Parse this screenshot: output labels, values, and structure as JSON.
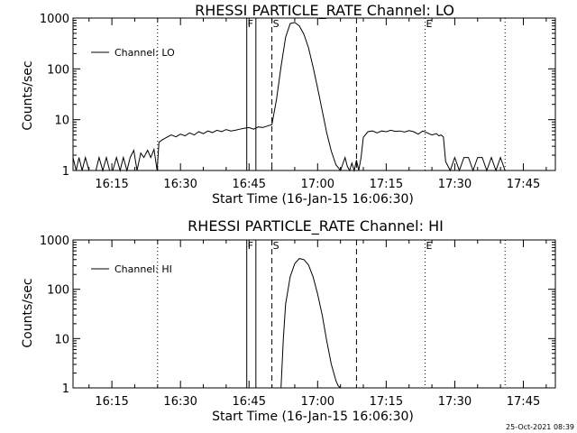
{
  "chart_data": [
    {
      "type": "line",
      "title": "RHESSI PARTICLE_RATE Channel: LO",
      "xlabel": "Start Time (16-Jan-15 16:06:30)",
      "ylabel": "Counts/sec",
      "y_scale": "log",
      "ylim": [
        1,
        1000
      ],
      "y_tick_values": [
        1,
        10,
        100,
        1000
      ],
      "y_tick_labels": [
        "1",
        "10",
        "100",
        "1000"
      ],
      "xlim_minutes": [
        6.5,
        112
      ],
      "x_tick_values": [
        15,
        30,
        45,
        60,
        75,
        90,
        105
      ],
      "x_tick_labels": [
        "16:15",
        "16:30",
        "16:45",
        "17:00",
        "17:15",
        "17:30",
        "17:45"
      ],
      "legend_label": "Channel: LO",
      "legend_position": "top-left",
      "markers": [
        {
          "label": "F",
          "x": 44.5,
          "style": "solid"
        },
        {
          "label": "",
          "x": 46.5,
          "style": "solid"
        },
        {
          "label": "S",
          "x": 50.0,
          "style": "dashed"
        },
        {
          "label": "",
          "x": 68.5,
          "style": "dashed"
        },
        {
          "label": "E",
          "x": 83.5,
          "style": "dotted"
        },
        {
          "label": "",
          "x": 25.0,
          "style": "dotted"
        },
        {
          "label": "",
          "x": 101.0,
          "style": "dotted"
        }
      ],
      "series": [
        {
          "x": [
            6.5,
            7.2,
            7.8,
            8.5,
            9.2,
            10.0,
            10.7,
            11.5,
            12.2,
            13.0,
            13.8,
            14.5,
            15.2,
            16.0,
            16.8,
            17.5,
            18.3,
            19.0,
            19.8,
            20.5,
            21.3,
            22.0,
            22.8,
            23.5,
            24.2,
            24.9,
            25.3,
            26.0,
            27.0,
            28.0,
            29.0,
            30.0,
            31.0,
            32.0,
            33.0,
            34.0,
            35.0,
            36.0,
            37.0,
            38.0,
            39.0,
            40.0,
            41.0,
            42.0,
            43.0,
            44.0,
            45.0,
            46.0,
            47.0,
            48.0,
            49.0,
            50.0,
            51.0,
            52.0,
            53.0,
            54.0,
            55.0,
            56.0,
            57.0,
            58.0,
            59.0,
            60.0,
            61.0,
            62.0,
            63.0,
            64.0,
            65.0,
            66.0,
            66.5,
            67.0,
            67.5,
            68.0,
            68.5,
            69.0,
            69.5,
            70.0,
            71.0,
            72.0,
            73.0,
            74.0,
            75.0,
            76.0,
            77.0,
            78.0,
            79.0,
            80.0,
            81.0,
            82.0,
            83.0,
            84.0,
            85.0,
            86.0,
            86.5,
            87.0,
            87.5,
            88.0,
            89.0,
            90.0,
            91.0,
            92.0,
            93.0,
            94.0,
            95.0,
            96.0,
            97.0,
            98.0,
            99.0,
            100.0,
            101.0,
            101.8
          ],
          "y": [
            1.8,
            1,
            1.8,
            1,
            1.8,
            1,
            1,
            1,
            1.8,
            1,
            1.8,
            1,
            1,
            1.8,
            1,
            1.8,
            1,
            1.8,
            2.5,
            1,
            2.2,
            1.8,
            2.5,
            1.8,
            2.6,
            1,
            3.6,
            4.0,
            4.5,
            5.0,
            4.6,
            5.2,
            4.8,
            5.5,
            5.0,
            5.8,
            5.3,
            6.0,
            5.6,
            6.2,
            5.8,
            6.4,
            6.0,
            6.2,
            6.5,
            6.8,
            7.0,
            6.5,
            7.2,
            7.0,
            7.5,
            8.0,
            25,
            110,
            420,
            780,
            820,
            700,
            480,
            260,
            110,
            42,
            15,
            5.5,
            2.4,
            1.3,
            1.0,
            1.8,
            1.2,
            1.0,
            1.4,
            1.0,
            1.6,
            1.0,
            1.8,
            4.5,
            5.8,
            6.0,
            5.5,
            6.0,
            5.8,
            6.2,
            5.9,
            6.0,
            5.7,
            6.1,
            5.8,
            5.2,
            6.0,
            5.5,
            5.0,
            5.3,
            4.8,
            5.0,
            4.6,
            1.5,
            1.0,
            1.8,
            1.0,
            1.8,
            1.8,
            1.0,
            1.8,
            1.8,
            1.0,
            1.8,
            1.0,
            1.8,
            1.0,
            1.0
          ]
        }
      ]
    },
    {
      "type": "line",
      "title": "RHESSI PARTICLE_RATE Channel: HI",
      "xlabel": "Start Time (16-Jan-15 16:06:30)",
      "ylabel": "Counts/sec",
      "y_scale": "log",
      "ylim": [
        1,
        1000
      ],
      "y_tick_values": [
        1,
        10,
        100,
        1000
      ],
      "y_tick_labels": [
        "1",
        "10",
        "100",
        "1000"
      ],
      "xlim_minutes": [
        6.5,
        112
      ],
      "x_tick_values": [
        15,
        30,
        45,
        60,
        75,
        90,
        105
      ],
      "x_tick_labels": [
        "16:15",
        "16:30",
        "16:45",
        "17:00",
        "17:15",
        "17:30",
        "17:45"
      ],
      "legend_label": "Channel: HI",
      "legend_position": "top-left",
      "markers": [
        {
          "label": "F",
          "x": 44.5,
          "style": "solid"
        },
        {
          "label": "",
          "x": 46.5,
          "style": "solid"
        },
        {
          "label": "S",
          "x": 50.0,
          "style": "dashed"
        },
        {
          "label": "",
          "x": 68.5,
          "style": "dashed"
        },
        {
          "label": "E",
          "x": 83.5,
          "style": "dotted"
        },
        {
          "label": "",
          "x": 25.0,
          "style": "dotted"
        },
        {
          "label": "",
          "x": 101.0,
          "style": "dotted"
        }
      ],
      "series": [
        {
          "x": [
            52.0,
            52.5,
            53.0,
            54.0,
            55.0,
            56.0,
            57.0,
            58.0,
            59.0,
            60.0,
            61.0,
            62.0,
            63.0,
            64.0,
            64.5,
            65.0
          ],
          "y": [
            1,
            10,
            50,
            180,
            330,
            420,
            400,
            310,
            180,
            80,
            30,
            9,
            3.0,
            1.4,
            1.1,
            1
          ]
        }
      ]
    }
  ],
  "footer": {
    "timestamp": "25-Oct-2021 08:39"
  }
}
